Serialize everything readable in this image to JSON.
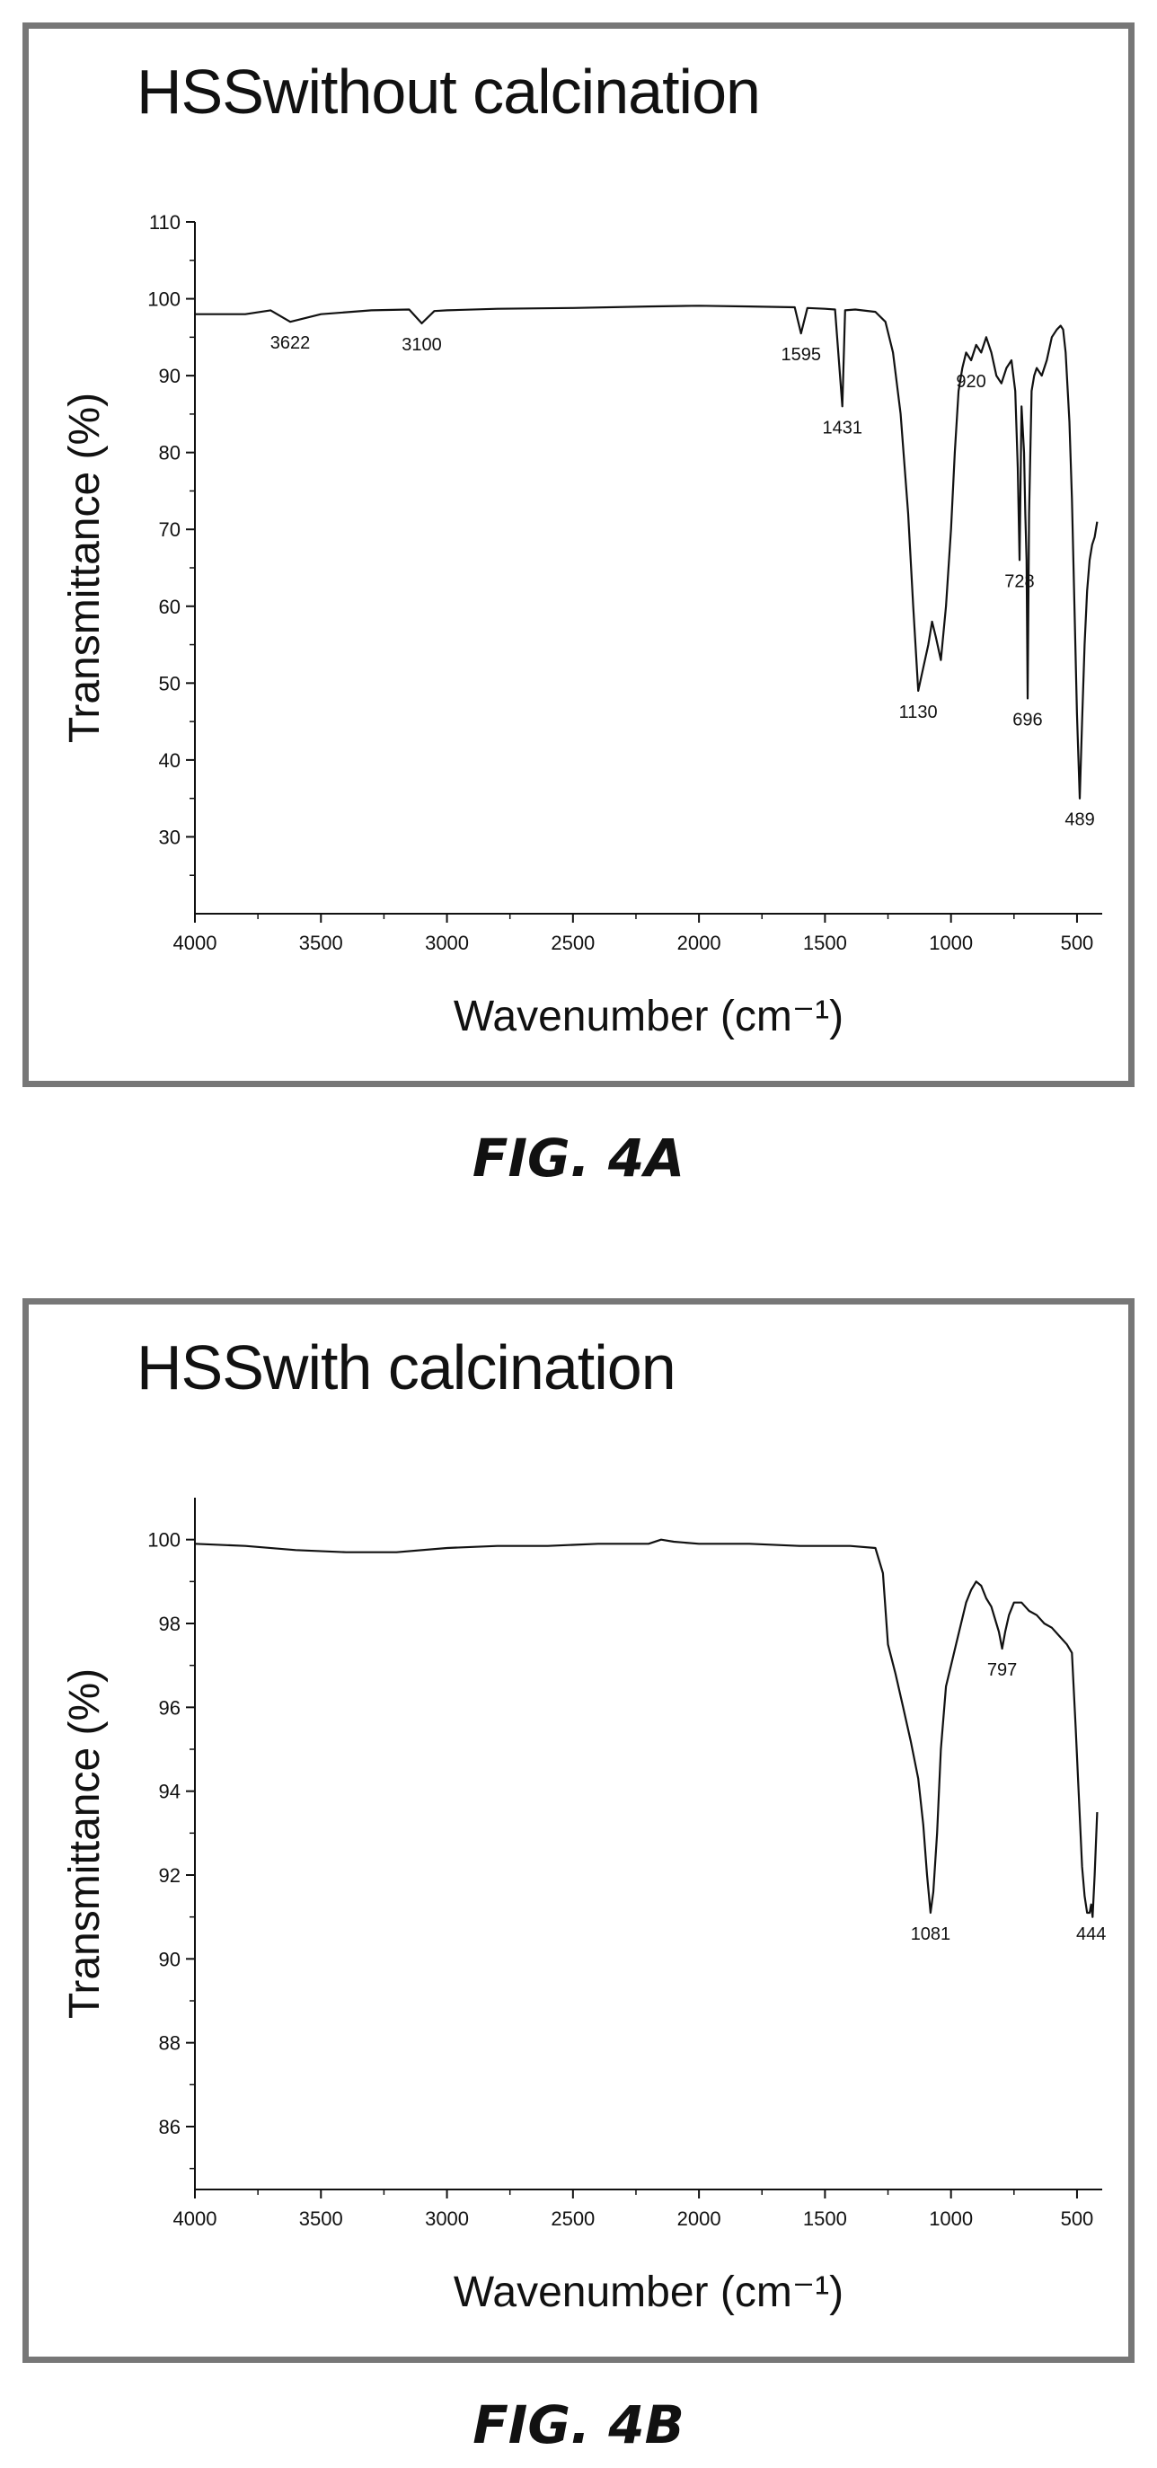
{
  "figures": [
    {
      "caption": "FIG. 4A",
      "chart_data": {
        "type": "line",
        "title": "HSSwithout calcination",
        "xlabel": "Wavenumber (cm⁻¹)",
        "ylabel": "Transmittance (%)",
        "xlim": [
          4000,
          400
        ],
        "ylim": [
          20,
          110
        ],
        "x_reversed": true,
        "xticks": [
          4000,
          3500,
          3000,
          2500,
          2000,
          1500,
          1000,
          500
        ],
        "yticks": [
          30,
          40,
          50,
          60,
          70,
          80,
          90,
          100,
          110
        ],
        "grid": false,
        "series": [
          {
            "x": [
              4000,
              3800,
              3700,
              3622,
              3500,
              3300,
              3150,
              3100,
              3050,
              3000,
              2800,
              2500,
              2200,
              2000,
              1800,
              1620,
              1595,
              1570,
              1500,
              1460,
              1431,
              1420,
              1380,
              1300,
              1260,
              1230,
              1200,
              1170,
              1150,
              1130,
              1110,
              1090,
              1075,
              1060,
              1040,
              1020,
              1000,
              985,
              970,
              955,
              940,
              920,
              900,
              880,
              860,
              840,
              820,
              800,
              780,
              760,
              745,
              735,
              728,
              720,
              710,
              705,
              700,
              696,
              690,
              680,
              670,
              660,
              640,
              620,
              600,
              580,
              565,
              555,
              545,
              530,
              520,
              510,
              500,
              489,
              480,
              470,
              460,
              450,
              440,
              430,
              420
            ],
            "y": [
              98,
              98,
              98.5,
              97,
              98,
              98.5,
              98.6,
              96.8,
              98.4,
              98.5,
              98.7,
              98.8,
              99,
              99.1,
              99,
              98.9,
              95.5,
              98.8,
              98.7,
              98.6,
              86,
              98.5,
              98.6,
              98.3,
              97,
              93,
              85,
              72,
              60,
              49,
              52,
              55,
              58,
              56,
              53,
              60,
              70,
              80,
              88,
              91,
              93,
              92,
              94,
              93,
              95,
              93,
              90,
              89,
              91,
              92,
              88,
              78,
              66,
              86,
              80,
              72,
              66,
              48,
              72,
              88,
              90,
              91,
              90,
              92,
              95,
              96,
              96.5,
              96,
              93,
              84,
              74,
              60,
              46,
              35,
              45,
              55,
              62,
              66,
              68,
              69,
              71
            ]
          }
        ],
        "annotations": [
          {
            "text": "3622",
            "x": 3622,
            "y": 97
          },
          {
            "text": "3100",
            "x": 3100,
            "y": 96.8
          },
          {
            "text": "1595",
            "x": 1595,
            "y": 95.5
          },
          {
            "text": "1431",
            "x": 1431,
            "y": 86
          },
          {
            "text": "920",
            "x": 920,
            "y": 92
          },
          {
            "text": "728",
            "x": 728,
            "y": 66
          },
          {
            "text": "1130",
            "x": 1130,
            "y": 49
          },
          {
            "text": "696",
            "x": 696,
            "y": 48
          },
          {
            "text": "489",
            "x": 489,
            "y": 35
          }
        ]
      }
    },
    {
      "caption": "FIG. 4B",
      "chart_data": {
        "type": "line",
        "title": "HSSwith calcination",
        "xlabel": "Wavenumber (cm⁻¹)",
        "ylabel": "Transmittance (%)",
        "xlim": [
          4000,
          400
        ],
        "ylim": [
          84.5,
          101
        ],
        "x_reversed": true,
        "xticks": [
          4000,
          3500,
          3000,
          2500,
          2000,
          1500,
          1000,
          500
        ],
        "yticks": [
          86,
          88,
          90,
          92,
          94,
          96,
          98,
          100
        ],
        "grid": false,
        "series": [
          {
            "x": [
              4000,
              3800,
              3600,
              3400,
              3200,
              3000,
              2800,
              2600,
              2400,
              2200,
              2150,
              2100,
              2000,
              1800,
              1600,
              1400,
              1300,
              1270,
              1250,
              1220,
              1190,
              1160,
              1130,
              1110,
              1095,
              1081,
              1070,
              1055,
              1040,
              1020,
              1000,
              980,
              960,
              940,
              920,
              900,
              880,
              860,
              840,
              820,
              810,
              797,
              785,
              770,
              750,
              720,
              690,
              660,
              630,
              600,
              570,
              540,
              520,
              505,
              490,
              480,
              470,
              460,
              450,
              444,
              438,
              430,
              420
            ],
            "y": [
              99.9,
              99.85,
              99.75,
              99.7,
              99.7,
              99.8,
              99.85,
              99.85,
              99.9,
              99.9,
              100,
              99.95,
              99.9,
              99.9,
              99.85,
              99.85,
              99.8,
              99.2,
              97.5,
              96.8,
              96,
              95.2,
              94.3,
              93.2,
              92,
              91.1,
              91.6,
              93,
              95,
              96.5,
              97,
              97.5,
              98,
              98.5,
              98.8,
              99,
              98.9,
              98.6,
              98.4,
              98,
              97.8,
              97.4,
              97.8,
              98.2,
              98.5,
              98.5,
              98.3,
              98.2,
              98,
              97.9,
              97.7,
              97.5,
              97.3,
              95.5,
              93.5,
              92.2,
              91.5,
              91.1,
              91.1,
              91.3,
              91,
              92,
              93.5
            ]
          }
        ],
        "annotations": [
          {
            "text": "797",
            "x": 797,
            "y": 97.4
          },
          {
            "text": "1081",
            "x": 1081,
            "y": 91.1
          },
          {
            "text": "444",
            "x": 444,
            "y": 91.1
          }
        ]
      }
    }
  ]
}
